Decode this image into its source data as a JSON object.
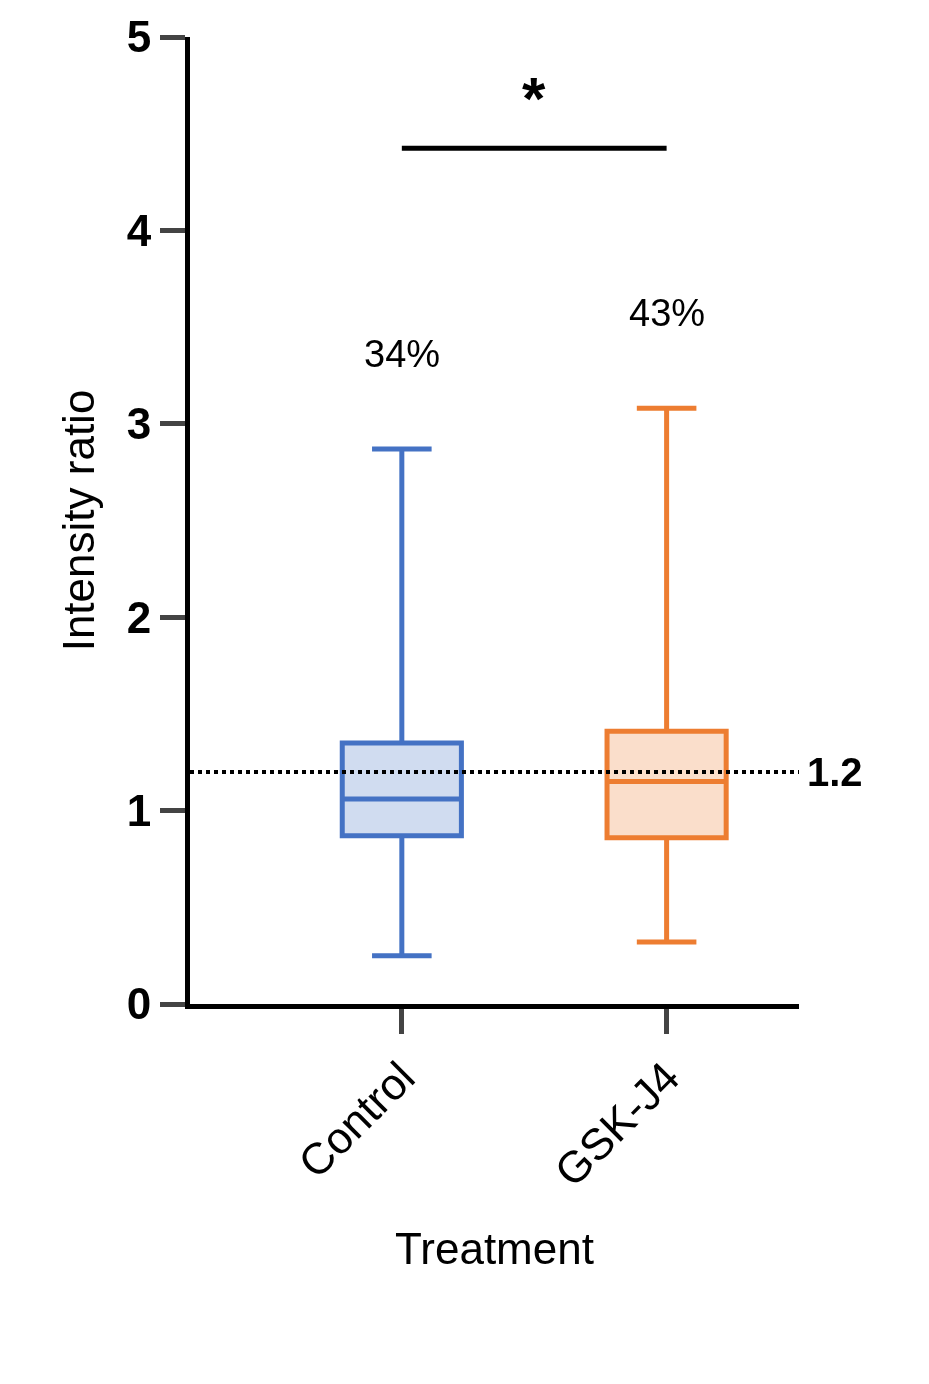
{
  "chart_data": {
    "type": "box",
    "xlabel": "Treatment",
    "ylabel": "Intensity ratio",
    "categories": [
      "Control",
      "GSK-J4"
    ],
    "series": [
      {
        "color": "#4472c4",
        "boxes": [
          {
            "low": 0.25,
            "q1": 0.87,
            "median": 1.06,
            "q3": 1.35,
            "high": 2.87
          },
          null
        ]
      },
      {
        "color": "#ed7d31",
        "boxes": [
          null,
          {
            "low": 0.32,
            "q1": 0.86,
            "median": 1.15,
            "q3": 1.41,
            "high": 3.08
          }
        ]
      }
    ],
    "ylim": [
      0,
      5
    ],
    "yticks": [
      0,
      1,
      2,
      3,
      4,
      5
    ],
    "ref_lines": [
      {
        "axis": "y",
        "value": 1.2,
        "label": "1.2",
        "color": "#000000",
        "line_style": "dotted"
      }
    ],
    "annotations": [
      "34%",
      "43%",
      "*"
    ]
  }
}
